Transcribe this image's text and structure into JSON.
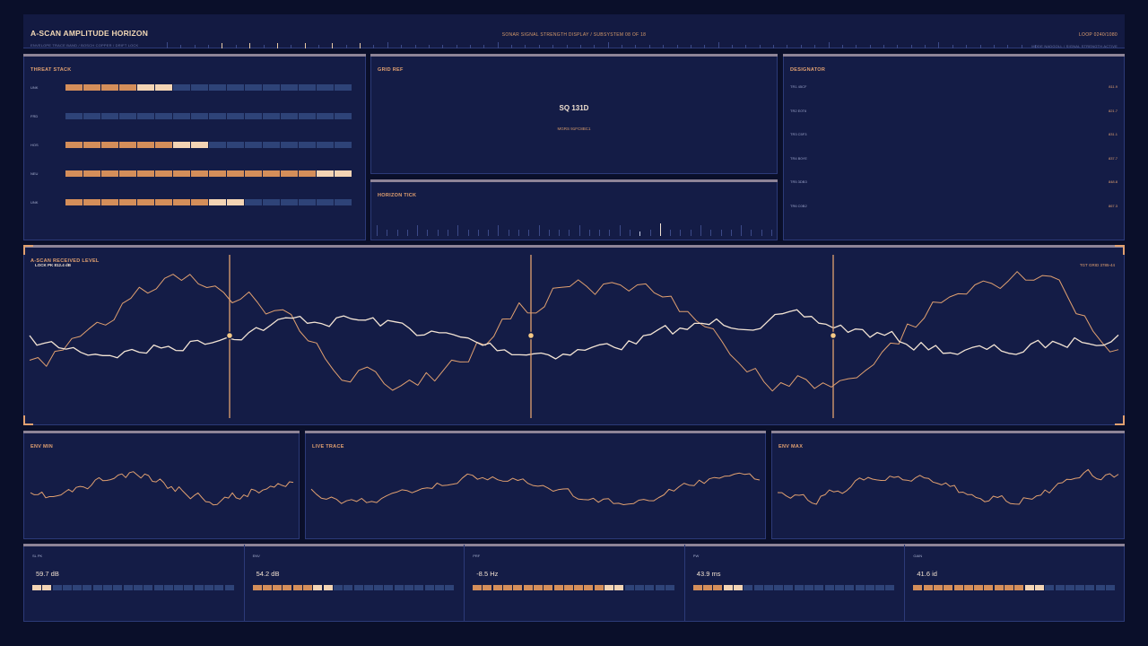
{
  "header": {
    "title": "A-SCAN AMPLITUDE HORIZON",
    "subtitle": "ENVELOPE TRACE BAND / BOSCH COPPER / DRIFT LOCK",
    "center": "SONAR SIGNAL STRENGTH DISPLAY / SUBSYSTEM 08 OF 18",
    "loop": "LOOP 0240/1080",
    "status": "MODE NADGOLL / SIGNAL STRENGTH ACTIVE"
  },
  "threat": {
    "title": "THREAT STACK",
    "rows": [
      {
        "label": "UNK",
        "level": 6
      },
      {
        "label": "FRD",
        "level": 0
      },
      {
        "label": "HOS",
        "level": 8
      },
      {
        "label": "NEU",
        "level": 16
      },
      {
        "label": "UNK",
        "level": 10
      }
    ],
    "segments": 16
  },
  "gridref": {
    "title": "GRID REF",
    "sq": "SQ 131D",
    "mgrs": "MGRS 91FC8BC1"
  },
  "horizon": {
    "title": "HORIZON TICK"
  },
  "designator": {
    "title": "DESIGNATOR",
    "rows": [
      {
        "id": "TR1 45CF",
        "val": "811.9"
      },
      {
        "id": "TR2 E0T6",
        "val": "821.7"
      },
      {
        "id": "TR3 C5F3",
        "val": "831.1"
      },
      {
        "id": "TR4 B0YE",
        "val": "837.7"
      },
      {
        "id": "TR5 3DB3",
        "val": "848.8"
      },
      {
        "id": "TR6 C0B2",
        "val": "867.3"
      }
    ]
  },
  "main": {
    "title": "A-SCAN RECEIVED LEVEL",
    "lock": "LOCK PK 812.4 dB",
    "tgt": "TGT GRID 3785-44"
  },
  "panels": {
    "env_min": "ENV MIN",
    "live": "LIVE TRACE",
    "env_max": "ENV MAX"
  },
  "stats": [
    {
      "label": "SL PK",
      "value": "59.7 dB",
      "level": 2
    },
    {
      "label": "ENV",
      "value": "54.2 dB",
      "level": 8
    },
    {
      "label": "PRF",
      "value": "-8.5 Hz",
      "level": 15
    },
    {
      "label": "PW",
      "value": "43.9 ms",
      "level": 5
    },
    {
      "label": "GAIN",
      "value": "41.6 id",
      "level": 13
    }
  ],
  "colors": {
    "accent": "#e1a070",
    "trace_light": "#f3e4d4",
    "panel": "#141c46",
    "bg": "#0a0f2a"
  }
}
